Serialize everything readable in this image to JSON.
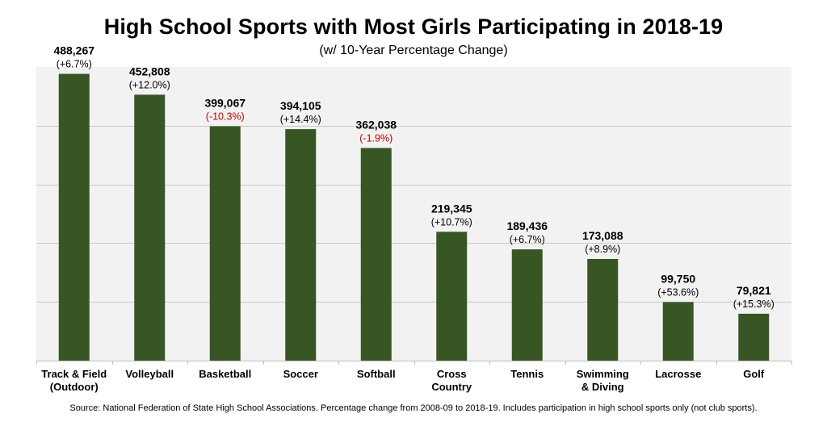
{
  "chart_data": {
    "type": "bar",
    "title": "High School Sports with Most Girls Participating in 2018-19",
    "subtitle": "(w/ 10-Year Percentage Change)",
    "categories": [
      [
        "Track & Field",
        "(Outdoor)"
      ],
      [
        "Volleyball"
      ],
      [
        "Basketball"
      ],
      [
        "Soccer"
      ],
      [
        "Softball"
      ],
      [
        "Cross",
        "Country"
      ],
      [
        "Tennis"
      ],
      [
        "Swimming",
        "& Diving"
      ],
      [
        "Lacrosse"
      ],
      [
        "Golf"
      ]
    ],
    "values": [
      488267,
      452808,
      399067,
      394105,
      362038,
      219345,
      189436,
      173088,
      99750,
      79821
    ],
    "value_labels": [
      "488,267",
      "452,808",
      "399,067",
      "394,105",
      "362,038",
      "219,345",
      "189,436",
      "173,088",
      "99,750",
      "79,821"
    ],
    "pct_change_labels": [
      "(+6.7%)",
      "(+12.0%)",
      "(-10.3%)",
      "(+14.4%)",
      "(-1.9%)",
      "(+10.7%)",
      "(+6.7%)",
      "(+8.9%)",
      "(+53.6%)",
      "(+15.3%)"
    ],
    "ylim": [
      0,
      500000
    ],
    "gridlines": [
      100000,
      200000,
      300000,
      400000,
      500000
    ],
    "grid": true,
    "legend": "none",
    "colors": {
      "bar": "#375623",
      "plot_background": "#f2f2f2",
      "gridline": "#c8c8c8",
      "negative": "#c00000",
      "text": "#000000"
    }
  },
  "source": "Source: National Federation of State High School Associations. Percentage change from 2008-09 to 2018-19. Includes participation in high school sports only (not club sports)."
}
